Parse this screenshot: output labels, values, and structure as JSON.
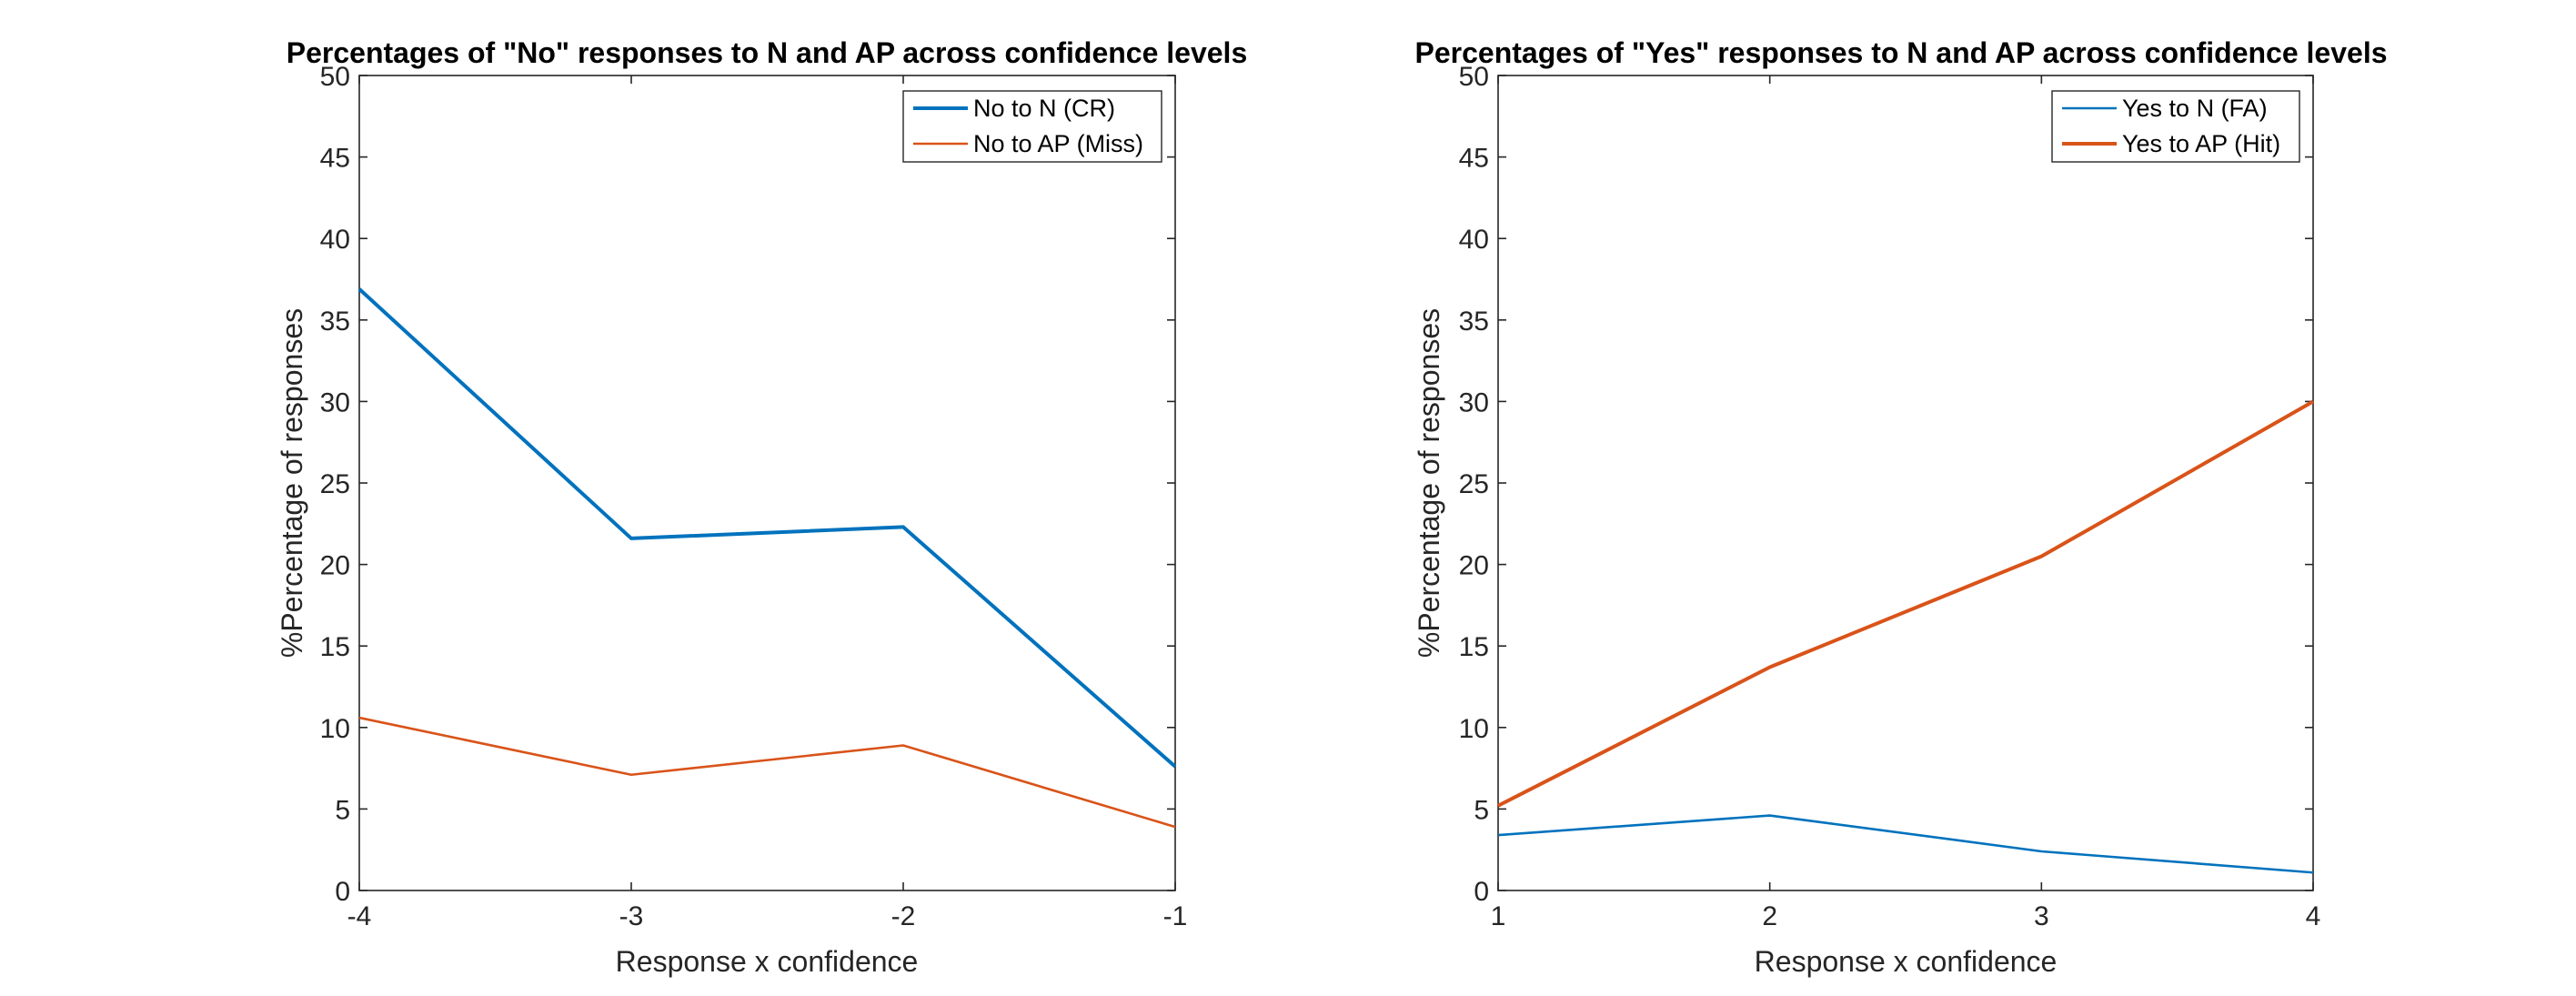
{
  "chart_data": [
    {
      "type": "line",
      "title": "Percentages of \"No\" responses to N and AP across confidence levels",
      "xlabel": "Response x confidence",
      "ylabel": "%Percentage of responses",
      "x": [
        -4,
        -3,
        -2,
        -1
      ],
      "xticks": [
        "-4",
        "-3",
        "-2",
        "-1"
      ],
      "xlim": [
        -4,
        -1
      ],
      "ylim": [
        0,
        50
      ],
      "yticks": [
        "0",
        "5",
        "10",
        "15",
        "20",
        "25",
        "30",
        "35",
        "40",
        "45",
        "50"
      ],
      "grid": false,
      "legend_position": "top-right",
      "series": [
        {
          "name": "No to N (CR)",
          "values": [
            36.9,
            21.6,
            22.3,
            7.6
          ],
          "color": "#0072BD",
          "weight": "thick"
        },
        {
          "name": "No to AP (Miss)",
          "values": [
            10.6,
            7.1,
            8.9,
            3.9
          ],
          "color": "#D95319",
          "weight": "thin"
        }
      ]
    },
    {
      "type": "line",
      "title": "Percentages of \"Yes\" responses to N and AP across confidence levels",
      "xlabel": "Response x confidence",
      "ylabel": "%Percentage of responses",
      "x": [
        1,
        2,
        3,
        4
      ],
      "xticks": [
        "1",
        "2",
        "3",
        "4"
      ],
      "xlim": [
        1,
        4
      ],
      "ylim": [
        0,
        50
      ],
      "yticks": [
        "0",
        "5",
        "10",
        "15",
        "20",
        "25",
        "30",
        "35",
        "40",
        "45",
        "50"
      ],
      "grid": false,
      "legend_position": "top-right",
      "series": [
        {
          "name": "Yes to N (FA)",
          "values": [
            3.4,
            4.6,
            2.4,
            1.1
          ],
          "color": "#0072BD",
          "weight": "thin"
        },
        {
          "name": "Yes to AP (Hit)",
          "values": [
            5.2,
            13.7,
            20.5,
            30.0
          ],
          "color": "#D95319",
          "weight": "thick"
        }
      ]
    }
  ]
}
